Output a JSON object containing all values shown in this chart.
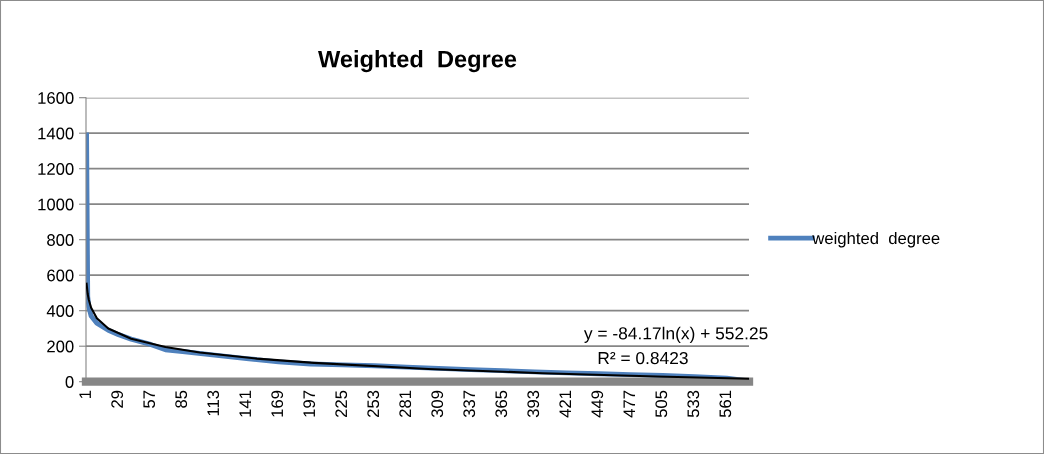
{
  "chart_data": {
    "type": "line",
    "title": "Weighted  Degree",
    "series": [
      {
        "name": "weighted  degree",
        "color": "#4f81bd",
        "x": [
          1,
          2,
          3,
          5,
          10,
          20,
          29,
          40,
          57,
          70,
          85,
          113,
          141,
          169,
          197,
          225,
          253,
          281,
          309,
          337,
          365,
          393,
          421,
          449,
          477,
          505,
          533,
          561,
          580
        ],
        "values": [
          1390,
          480,
          420,
          370,
          330,
          290,
          265,
          240,
          210,
          180,
          170,
          150,
          130,
          112,
          100,
          95,
          90,
          82,
          75,
          68,
          62,
          55,
          50,
          45,
          40,
          35,
          28,
          20,
          5
        ]
      },
      {
        "type": "line",
        "color": "#000000",
        "x": [
          1,
          2,
          3,
          5,
          10,
          20,
          40,
          70,
          100,
          150,
          200,
          300,
          400,
          500,
          580
        ],
        "values": [
          552,
          494,
          460,
          417,
          358,
          300,
          242,
          195,
          165,
          130,
          106,
          72,
          48,
          29,
          17
        ]
      }
    ],
    "xlim": [
      0.5,
      580.5
    ],
    "xticks": [
      1,
      29,
      57,
      85,
      113,
      141,
      169,
      197,
      225,
      253,
      281,
      309,
      337,
      365,
      393,
      421,
      449,
      477,
      505,
      533,
      561
    ],
    "ylim": [
      0,
      1600
    ],
    "yticks": [
      0,
      200,
      400,
      600,
      800,
      1000,
      1200,
      1400,
      1600
    ],
    "grid": "y",
    "legend": "right",
    "marker": "none",
    "line_style": "solid",
    "annotations": [
      "y = -84.17ln(x) + 552.25",
      "R² = 0.8423"
    ]
  }
}
